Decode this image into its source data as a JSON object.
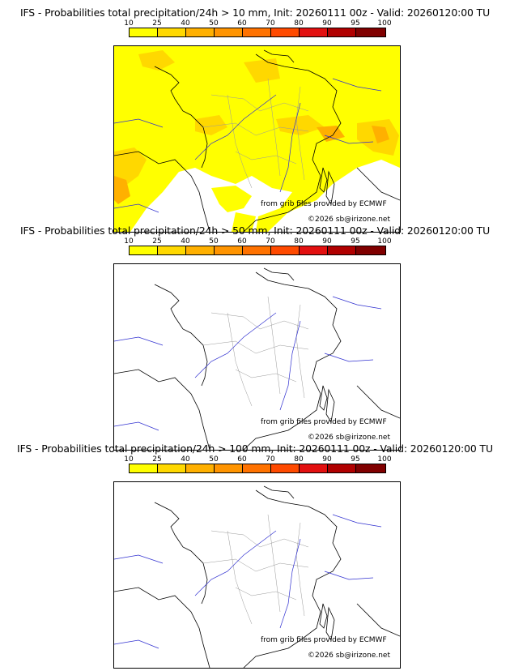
{
  "colorbar": {
    "ticks": [
      "10",
      "25",
      "40",
      "50",
      "60",
      "70",
      "80",
      "90",
      "95",
      "100"
    ],
    "colors": [
      "#ffff00",
      "#ffd800",
      "#ffb000",
      "#ff9400",
      "#ff7200",
      "#ff4a00",
      "#e21010",
      "#b00000",
      "#800000"
    ]
  },
  "panels": [
    {
      "title": "IFS - Probabilities total precipitation/24h > 10 mm, Init: 20260111 00z - Valid: 20260120:00 TU",
      "credit": "from grib files provided by ECMWF",
      "copyright": "©2026 sb@irizone.net",
      "precip_coverage": "widespread"
    },
    {
      "title": "IFS - Probabilities total precipitation/24h > 50 mm, Init: 20260111 00z - Valid: 20260120:00 TU",
      "credit": "from grib files provided by ECMWF",
      "copyright": "©2026 sb@irizone.net",
      "precip_coverage": "none"
    },
    {
      "title": "IFS - Probabilities total precipitation/24h > 100 mm, Init: 20260111 00z - Valid: 20260120:00 TU",
      "credit": "from grib files provided by ECMWF",
      "copyright": "©2026 sb@irizone.net",
      "precip_coverage": "none"
    }
  ]
}
